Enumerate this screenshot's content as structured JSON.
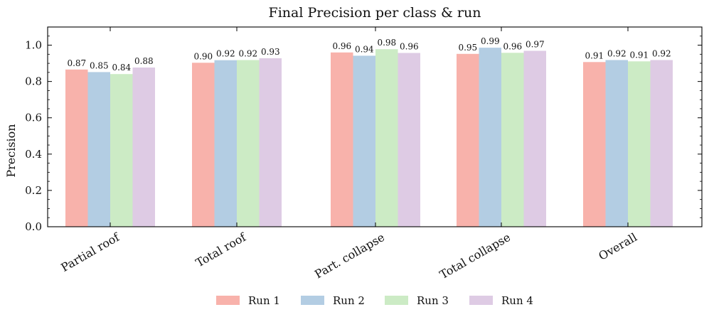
{
  "chart_data": {
    "type": "bar",
    "title": "Final Precision per class & run",
    "xlabel": "",
    "ylabel": "Precision",
    "ylim": [
      0,
      1.1
    ],
    "yticks": [
      "0.0",
      "0.2",
      "0.4",
      "0.6",
      "0.8",
      "1.0"
    ],
    "categories": [
      "Partial roof",
      "Total roof",
      "Part. collapse",
      "Total collapse",
      "Overall"
    ],
    "series": [
      {
        "name": "Run 1",
        "color": "#f8b2ab",
        "values": [
          0.866,
          0.903,
          0.96,
          0.952,
          0.907
        ],
        "labels": [
          "0.87",
          "0.90",
          "0.96",
          "0.95",
          "0.91"
        ]
      },
      {
        "name": "Run 2",
        "color": "#b3cde3",
        "values": [
          0.852,
          0.917,
          0.942,
          0.986,
          0.918
        ],
        "labels": [
          "0.85",
          "0.92",
          "0.94",
          "0.99",
          "0.92"
        ]
      },
      {
        "name": "Run 3",
        "color": "#ccebc5",
        "values": [
          0.841,
          0.918,
          0.978,
          0.958,
          0.911
        ],
        "labels": [
          "0.84",
          "0.92",
          "0.98",
          "0.96",
          "0.91"
        ]
      },
      {
        "name": "Run 4",
        "color": "#decbe4",
        "values": [
          0.877,
          0.928,
          0.957,
          0.969,
          0.918
        ],
        "labels": [
          "0.88",
          "0.93",
          "0.96",
          "0.97",
          "0.92"
        ]
      }
    ],
    "legend": "bottom-center",
    "grid": false
  }
}
